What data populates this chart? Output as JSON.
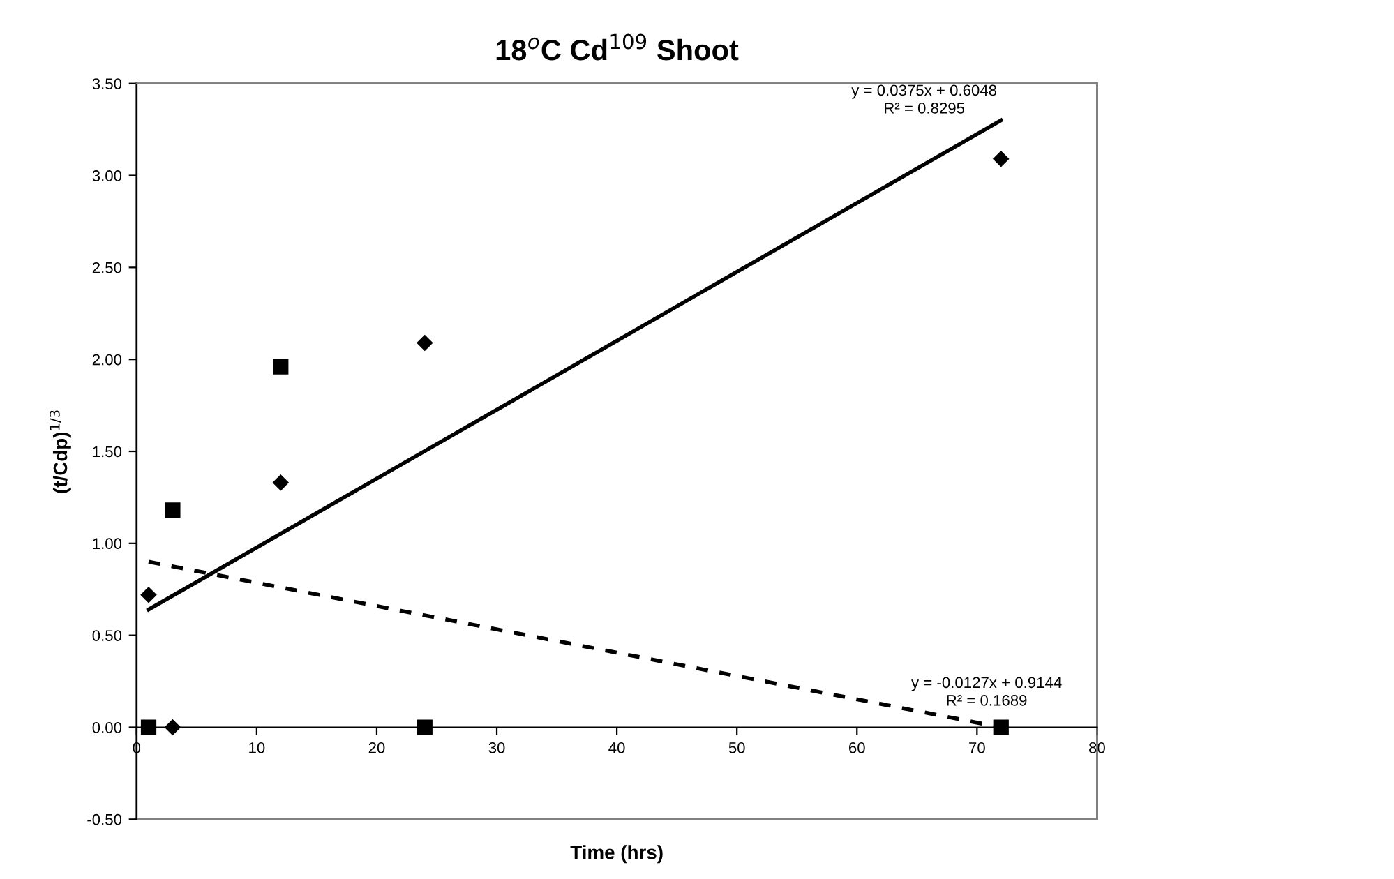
{
  "chart_data": {
    "type": "scatter",
    "title": "18$^{o}$C Cd$^{109}$ Shoot",
    "xlabel": "Time (hrs)",
    "ylabel": "(t/Cdp)$^{1/3}$",
    "series": [
      {
        "type": "scatter",
        "marker": "diamond",
        "color": "#000000",
        "x": [
          1,
          3,
          12,
          24,
          72
        ],
        "values": [
          0.72,
          0.0,
          1.33,
          2.09,
          3.09
        ]
      },
      {
        "type": "scatter",
        "marker": "square",
        "color": "#000000",
        "x": [
          1,
          3,
          12,
          24,
          72
        ],
        "values": [
          0.0,
          1.18,
          1.96,
          0.0,
          0.0
        ]
      },
      {
        "type": "line",
        "line_style": "solid",
        "color": "#000000",
        "x": [
          1,
          72
        ],
        "values": [
          0.64,
          3.3
        ]
      },
      {
        "type": "line",
        "line_style": "dashed",
        "color": "#000000",
        "x": [
          1,
          72
        ],
        "values": [
          0.9,
          0.0
        ]
      }
    ],
    "annotations": [
      "y = 0.0375x + 0.6048\nR² = 0.8295",
      "y = -0.0127x + 0.9144\nR² = 0.1689"
    ],
    "xlim": [
      0,
      80
    ],
    "xticks": [
      0,
      10,
      20,
      30,
      40,
      50,
      60,
      70,
      80
    ],
    "ylim": [
      -0.5,
      3.5
    ],
    "yticks": [
      {
        "value": -0.5,
        "label": "-0.50"
      },
      {
        "value": 0,
        "label": "0.00"
      },
      {
        "value": 0.5,
        "label": "0.50"
      },
      {
        "value": 1,
        "label": "1.00"
      },
      {
        "value": 1.5,
        "label": "1.50"
      },
      {
        "value": 2,
        "label": "2.00"
      },
      {
        "value": 2.5,
        "label": "2.50"
      },
      {
        "value": 3,
        "label": "3.00"
      },
      {
        "value": 3.5,
        "label": "3.50"
      }
    ],
    "grid": false,
    "legend": false
  }
}
